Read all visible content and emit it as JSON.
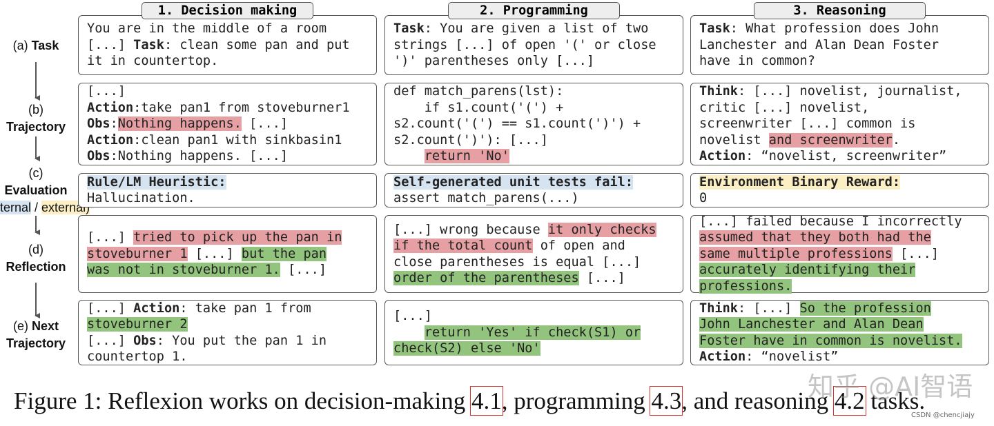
{
  "stages": [
    {
      "lines": [
        [
          "(a) ",
          {
            "text": "Task",
            "style": "bold"
          }
        ]
      ]
    },
    {
      "lines": [
        [
          "(b)"
        ],
        [
          {
            "text": "Trajectory",
            "style": "bold"
          }
        ]
      ]
    },
    {
      "lines": [
        [
          "(c)"
        ],
        [
          {
            "text": "Evaluation",
            "style": "bold"
          }
        ],
        [
          {
            "text": "(internal",
            "style": "blue"
          },
          " / ",
          {
            "text": "external)",
            "style": "yellow"
          }
        ]
      ]
    },
    {
      "lines": [
        [
          "(d)"
        ],
        [
          {
            "text": "Reflection",
            "style": "bold"
          }
        ]
      ]
    },
    {
      "lines": [
        [
          "(e) ",
          {
            "text": "Next",
            "style": "bold"
          }
        ],
        [
          {
            "text": "Trajectory",
            "style": "bold"
          }
        ]
      ]
    }
  ],
  "columns": [
    {
      "title": "1. Decision making",
      "boxes": [
        {
          "lines": [
            [
              "You are in the middle of a room"
            ],
            [
              "[...] ",
              {
                "text": "Task",
                "style": "bold"
              },
              ": clean some pan and put"
            ],
            [
              "it in countertop."
            ]
          ]
        },
        {
          "lines": [
            [
              "[...]"
            ],
            [
              {
                "text": "Action",
                "style": "bold"
              },
              ":take pan1 from stoveburner1"
            ],
            [
              {
                "text": "Obs",
                "style": "bold"
              },
              ":",
              {
                "text": "Nothing happens.",
                "style": "red"
              },
              " [...]"
            ],
            [
              {
                "text": "Action",
                "style": "bold"
              },
              ":clean pan1 with sinkbasin1"
            ],
            [
              {
                "text": "Obs",
                "style": "bold"
              },
              ":Nothing happens. [...]"
            ]
          ]
        },
        {
          "lines": [
            [
              {
                "text": "Rule/LM Heuristic:",
                "style": "bold-blue"
              }
            ],
            [
              "Hallucination."
            ]
          ]
        },
        {
          "lines": [
            [
              "[...] ",
              {
                "text": "tried to pick up the pan in",
                "style": "red"
              }
            ],
            [
              {
                "text": "stoveburner 1",
                "style": "red"
              },
              " [...] ",
              {
                "text": "but the pan",
                "style": "green"
              }
            ],
            [
              {
                "text": "was not in stoveburner 1.",
                "style": "green"
              },
              " [...]"
            ]
          ]
        },
        {
          "lines": [
            [
              "[...] ",
              {
                "text": "Action",
                "style": "bold"
              },
              ": take pan 1 from"
            ],
            [
              {
                "text": "stoveburner 2",
                "style": "green"
              }
            ],
            [
              "[...] ",
              {
                "text": "Obs",
                "style": "bold"
              },
              ": You put the pan 1 in"
            ],
            [
              "countertop 1."
            ]
          ]
        }
      ]
    },
    {
      "title": "2. Programming",
      "boxes": [
        {
          "lines": [
            [
              {
                "text": "Task",
                "style": "bold"
              },
              ": You are given a list of two"
            ],
            [
              "strings [...] of open '(' or close"
            ],
            [
              "')' parentheses only [...]"
            ]
          ]
        },
        {
          "lines": [
            [
              "def match_parens(lst):"
            ],
            [
              "    if s1.count('(') +"
            ],
            [
              "s2.count('(') == s1.count(')') +"
            ],
            [
              "s2.count(')'): [...]"
            ],
            [
              "    ",
              {
                "text": "return 'No'",
                "style": "red"
              }
            ]
          ]
        },
        {
          "lines": [
            [
              {
                "text": "Self-generated unit tests fail:",
                "style": "bold-blue"
              }
            ],
            [
              "assert match_parens(...)"
            ]
          ]
        },
        {
          "lines": [
            [
              "[...] wrong because ",
              {
                "text": "it only checks",
                "style": "red"
              }
            ],
            [
              {
                "text": "if the total count",
                "style": "red"
              },
              " of open and"
            ],
            [
              "close parentheses is equal [...]"
            ],
            [
              {
                "text": "order of the parentheses",
                "style": "green"
              },
              " [...]"
            ]
          ]
        },
        {
          "lines": [
            [
              "[...]"
            ],
            [
              "    ",
              {
                "text": "return 'Yes' if check(S1) or",
                "style": "green"
              }
            ],
            [
              {
                "text": "check(S2) else 'No'",
                "style": "green"
              }
            ]
          ]
        }
      ]
    },
    {
      "title": "3. Reasoning",
      "boxes": [
        {
          "lines": [
            [
              {
                "text": "Task",
                "style": "bold"
              },
              ": What profession does John"
            ],
            [
              "Lanchester and Alan Dean Foster"
            ],
            [
              "have in common?"
            ]
          ]
        },
        {
          "lines": [
            [
              {
                "text": "Think",
                "style": "bold"
              },
              ": [...] novelist, journalist,"
            ],
            [
              "critic [...] novelist,"
            ],
            [
              "screenwriter [...] common is"
            ],
            [
              "novelist ",
              {
                "text": "and screenwriter",
                "style": "red"
              },
              "."
            ],
            [
              {
                "text": "Action",
                "style": "bold"
              },
              ": “novelist, screenwriter”"
            ]
          ]
        },
        {
          "lines": [
            [
              {
                "text": "Environment Binary Reward:",
                "style": "bold-yellow"
              }
            ],
            [
              "0"
            ]
          ]
        },
        {
          "lines": [
            [
              "[...] failed because I incorrectly"
            ],
            [
              {
                "text": "assumed that they both had the",
                "style": "red"
              }
            ],
            [
              {
                "text": "same multiple professions",
                "style": "red"
              },
              " [...]"
            ],
            [
              {
                "text": "accurately identifying their",
                "style": "green"
              }
            ],
            [
              {
                "text": "professions.",
                "style": "green"
              }
            ]
          ]
        },
        {
          "lines": [
            [
              {
                "text": "Think",
                "style": "bold"
              },
              ": [...] ",
              {
                "text": "So the profession",
                "style": "green"
              }
            ],
            [
              {
                "text": "John Lanchester and Alan Dean",
                "style": "green"
              }
            ],
            [
              {
                "text": "Foster have in common is novelist.",
                "style": "green"
              }
            ],
            [
              {
                "text": "Action",
                "style": "bold"
              },
              ": “novelist”"
            ]
          ]
        }
      ]
    }
  ],
  "caption": [
    "Figure 1: Reflexion works on decision-making ",
    {
      "text": "4.1",
      "style": "ref"
    },
    ", programming ",
    {
      "text": "4.3",
      "style": "ref"
    },
    ", and reasoning ",
    {
      "text": "4.2",
      "style": "ref"
    },
    " tasks."
  ],
  "watermark": "知乎 @AI智语",
  "credit": "CSDN @chencjiajy"
}
